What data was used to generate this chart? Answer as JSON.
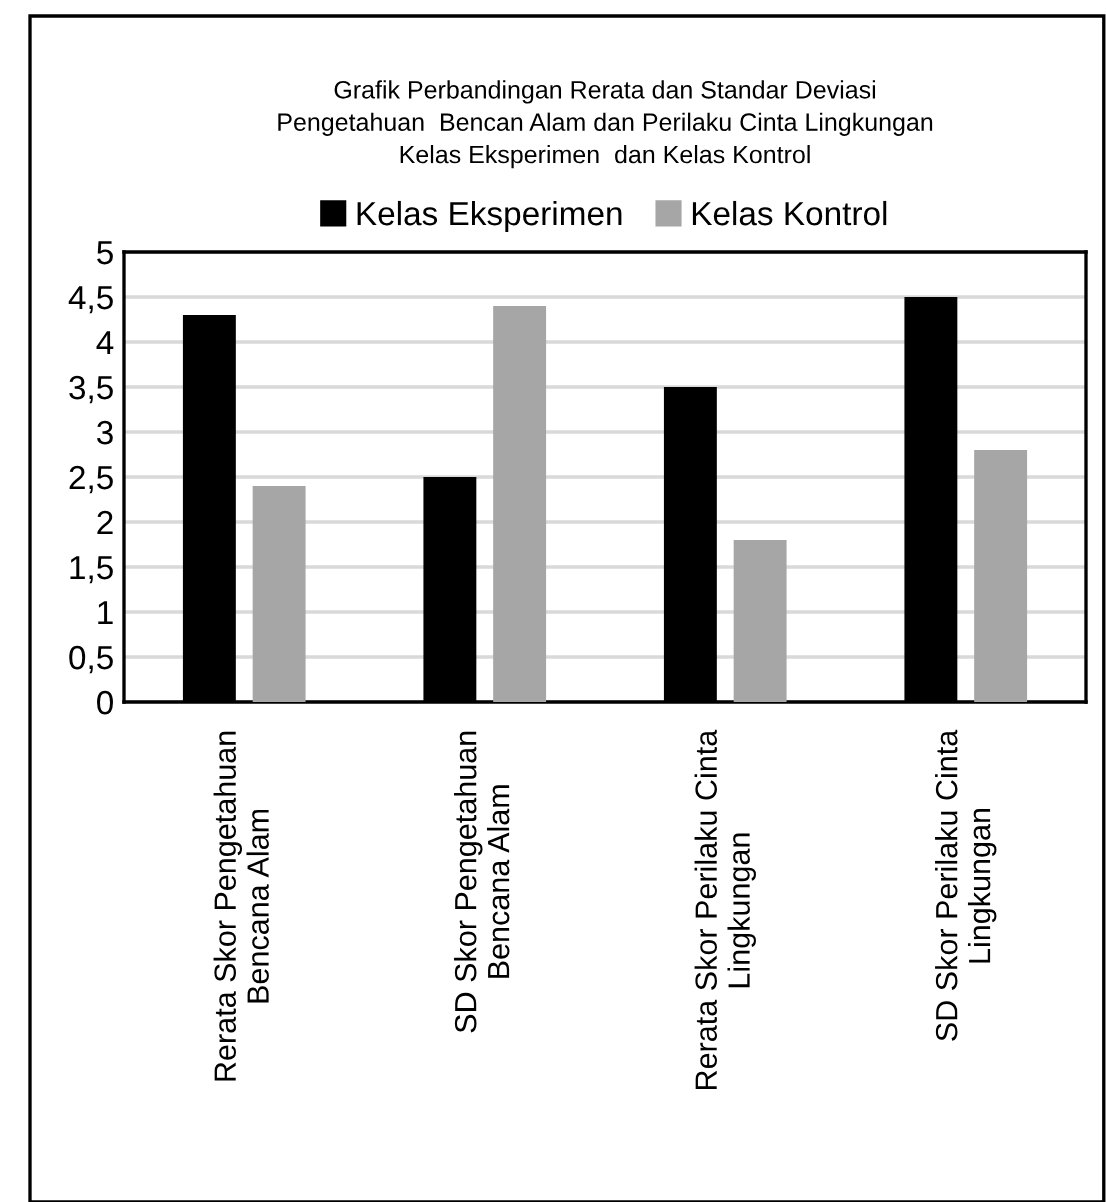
{
  "chart_data": {
    "type": "bar",
    "title": "Grafik Perbandingan Rerata dan Standar Deviasi\nPengetahuan  Bencan Alam dan Perilaku Cinta Lingkungan\nKelas Eksperimen  dan Kelas Kontrol",
    "categories": [
      "Rerata Skor Pengetahuan\nBencana Alam",
      "SD Skor Pengetahuan\nBencana Alam",
      "Rerata Skor Perilaku Cinta\nLingkungan",
      "SD Skor Perilaku Cinta\nLingkungan"
    ],
    "series": [
      {
        "name": "Kelas Eksperimen",
        "color": "#000000",
        "values": [
          4.3,
          2.5,
          3.5,
          4.5
        ]
      },
      {
        "name": "Kelas Kontrol",
        "color": "#a6a6a6",
        "values": [
          2.4,
          4.4,
          1.8,
          2.8
        ]
      }
    ],
    "ylim": [
      0,
      5
    ],
    "yticks": [
      0,
      {
        "value": 0.5,
        "label": "0,5"
      },
      1,
      {
        "value": 1.5,
        "label": "1,5"
      },
      2,
      {
        "value": 2.5,
        "label": "2,5"
      },
      3,
      {
        "value": 3.5,
        "label": "3,5"
      },
      4,
      {
        "value": 4.5,
        "label": "4,5"
      },
      5
    ],
    "grid": "y",
    "legend": "top"
  }
}
